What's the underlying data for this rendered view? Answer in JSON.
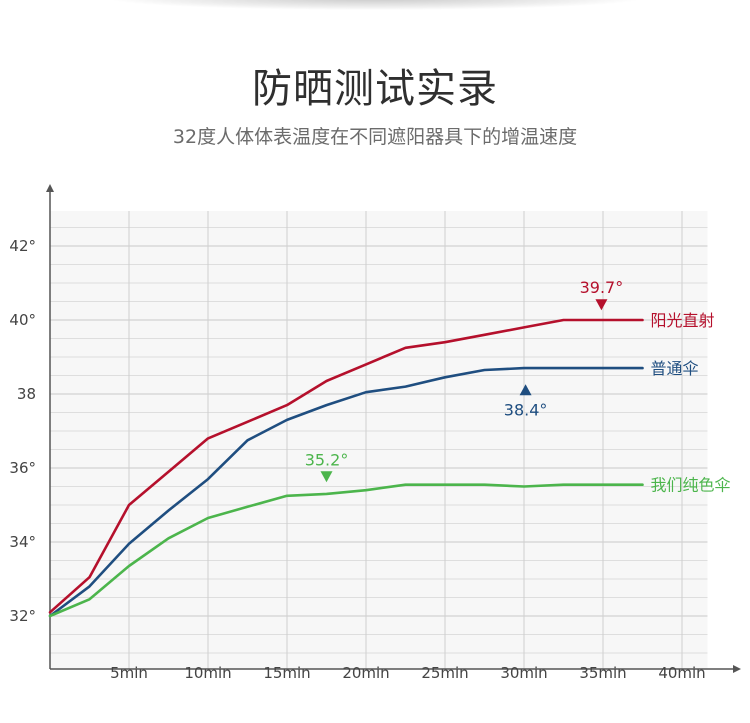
{
  "header": {
    "title": "防晒测试实录",
    "subtitle": "32度人体体表温度在不同遮阳器具下的增温速度"
  },
  "chart_data": {
    "type": "line",
    "x": [
      0,
      2.5,
      5,
      7.5,
      10,
      12.5,
      15,
      17.5,
      20,
      22.5,
      25,
      27.5,
      30,
      32.5,
      35,
      37.5
    ],
    "x_ticks": [
      "5min",
      "10min",
      "15min",
      "20min",
      "25min",
      "30min",
      "35min",
      "40min"
    ],
    "x_tick_values": [
      5,
      10,
      15,
      20,
      25,
      30,
      35,
      40
    ],
    "xlim": [
      0,
      42.5
    ],
    "y_ticks": [
      "32°",
      "34°",
      "36°",
      "38",
      "40°",
      "42°"
    ],
    "y_tick_values": [
      32,
      34,
      36,
      38,
      40,
      42
    ],
    "ylim": [
      31,
      43
    ],
    "grid": true,
    "series": [
      {
        "name": "阳光直射",
        "color": "#b5102c",
        "values": [
          32.1,
          33.05,
          35.0,
          35.9,
          36.8,
          37.25,
          37.7,
          38.35,
          38.8,
          39.25,
          39.4,
          39.6,
          39.8,
          40.0,
          40.0,
          40.0
        ]
      },
      {
        "name": "普通伞",
        "color": "#1f4e80",
        "values": [
          32.0,
          32.8,
          33.95,
          34.85,
          35.7,
          36.75,
          37.3,
          37.7,
          38.05,
          38.2,
          38.45,
          38.65,
          38.7,
          38.7,
          38.7,
          38.7
        ]
      },
      {
        "name": "我们纯色伞",
        "color": "#4cb54c",
        "values": [
          32.0,
          32.45,
          33.35,
          34.1,
          34.65,
          34.95,
          35.25,
          35.3,
          35.4,
          35.55,
          35.55,
          35.55,
          35.5,
          35.55,
          35.55,
          35.55
        ]
      }
    ],
    "annotations": [
      {
        "text": "39.7°",
        "color": "#b5102c",
        "x": 34.9,
        "y": 40.4,
        "marker": "down"
      },
      {
        "text": "38.4°",
        "color": "#1f4e80",
        "x": 30.1,
        "y": 38.1,
        "marker": "up"
      },
      {
        "text": "35.2°",
        "color": "#4cb54c",
        "x": 17.5,
        "y": 35.75,
        "marker": "down"
      }
    ]
  }
}
